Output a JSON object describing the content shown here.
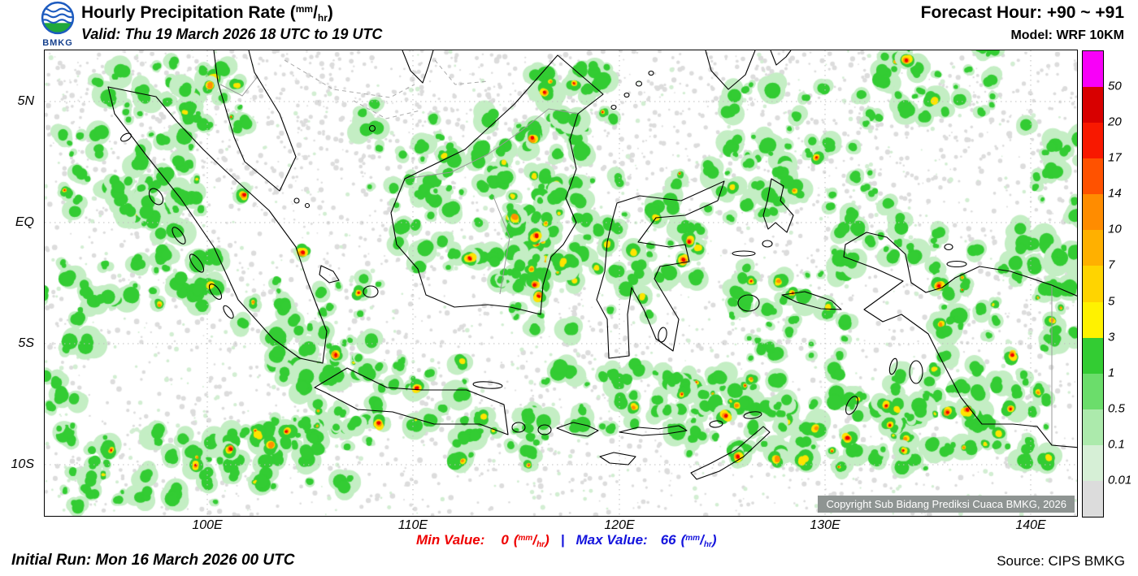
{
  "header": {
    "logo_text": "BMKG",
    "title_prefix": "Hourly Precipitation Rate (",
    "title_suffix": ")",
    "valid": "Valid: Thu 19 March 2026 18 UTC to 19 UTC",
    "forecast_hour": "Forecast Hour: +90 ~ +91",
    "model": "Model: WRF 10KM"
  },
  "units": {
    "open": "(",
    "num": "mm",
    "slash": "/",
    "den": "hr",
    "close": ")"
  },
  "map": {
    "lat_labels": [
      "5N",
      "EQ",
      "5S",
      "10S"
    ],
    "lon_labels": [
      "100E",
      "110E",
      "120E",
      "130E",
      "140E"
    ],
    "copyright": "Copyright Sub Bidang Prediksi Cuaca BMKG, 2026"
  },
  "legend": {
    "boundaries": [
      "50",
      "20",
      "17",
      "14",
      "10",
      "7",
      "5",
      "3",
      "1",
      "0.5",
      "0.1",
      "0.01"
    ],
    "colors": [
      "#f800f8",
      "#d80000",
      "#f81800",
      "#ff5200",
      "#ff8c00",
      "#ffb000",
      "#ffd400",
      "#fff200",
      "#33cc33",
      "#6bdd6b",
      "#aceaac",
      "#d6efd6",
      "#dcdcdc"
    ]
  },
  "footer": {
    "initial_run": "Initial Run: Mon 16 March 2026 00 UTC",
    "min_label": "Min Value:",
    "min_value": "0",
    "separator": "|",
    "max_label": "Max Value:",
    "max_value": "66",
    "source": "Source: CIPS BMKG"
  },
  "colors": {
    "green": "#33cc33",
    "pale_green": "#c4eec4",
    "speckle_green": "#d2eed2",
    "trace_gray": "#dcdcdc",
    "yellow": "#ffe400",
    "orange": "#ff9000",
    "red": "#ee0000",
    "min_red": "#ee0000",
    "max_blue": "#1414dd",
    "logo_blue": "#1d5bbf",
    "logo_green": "#1fa83c"
  }
}
